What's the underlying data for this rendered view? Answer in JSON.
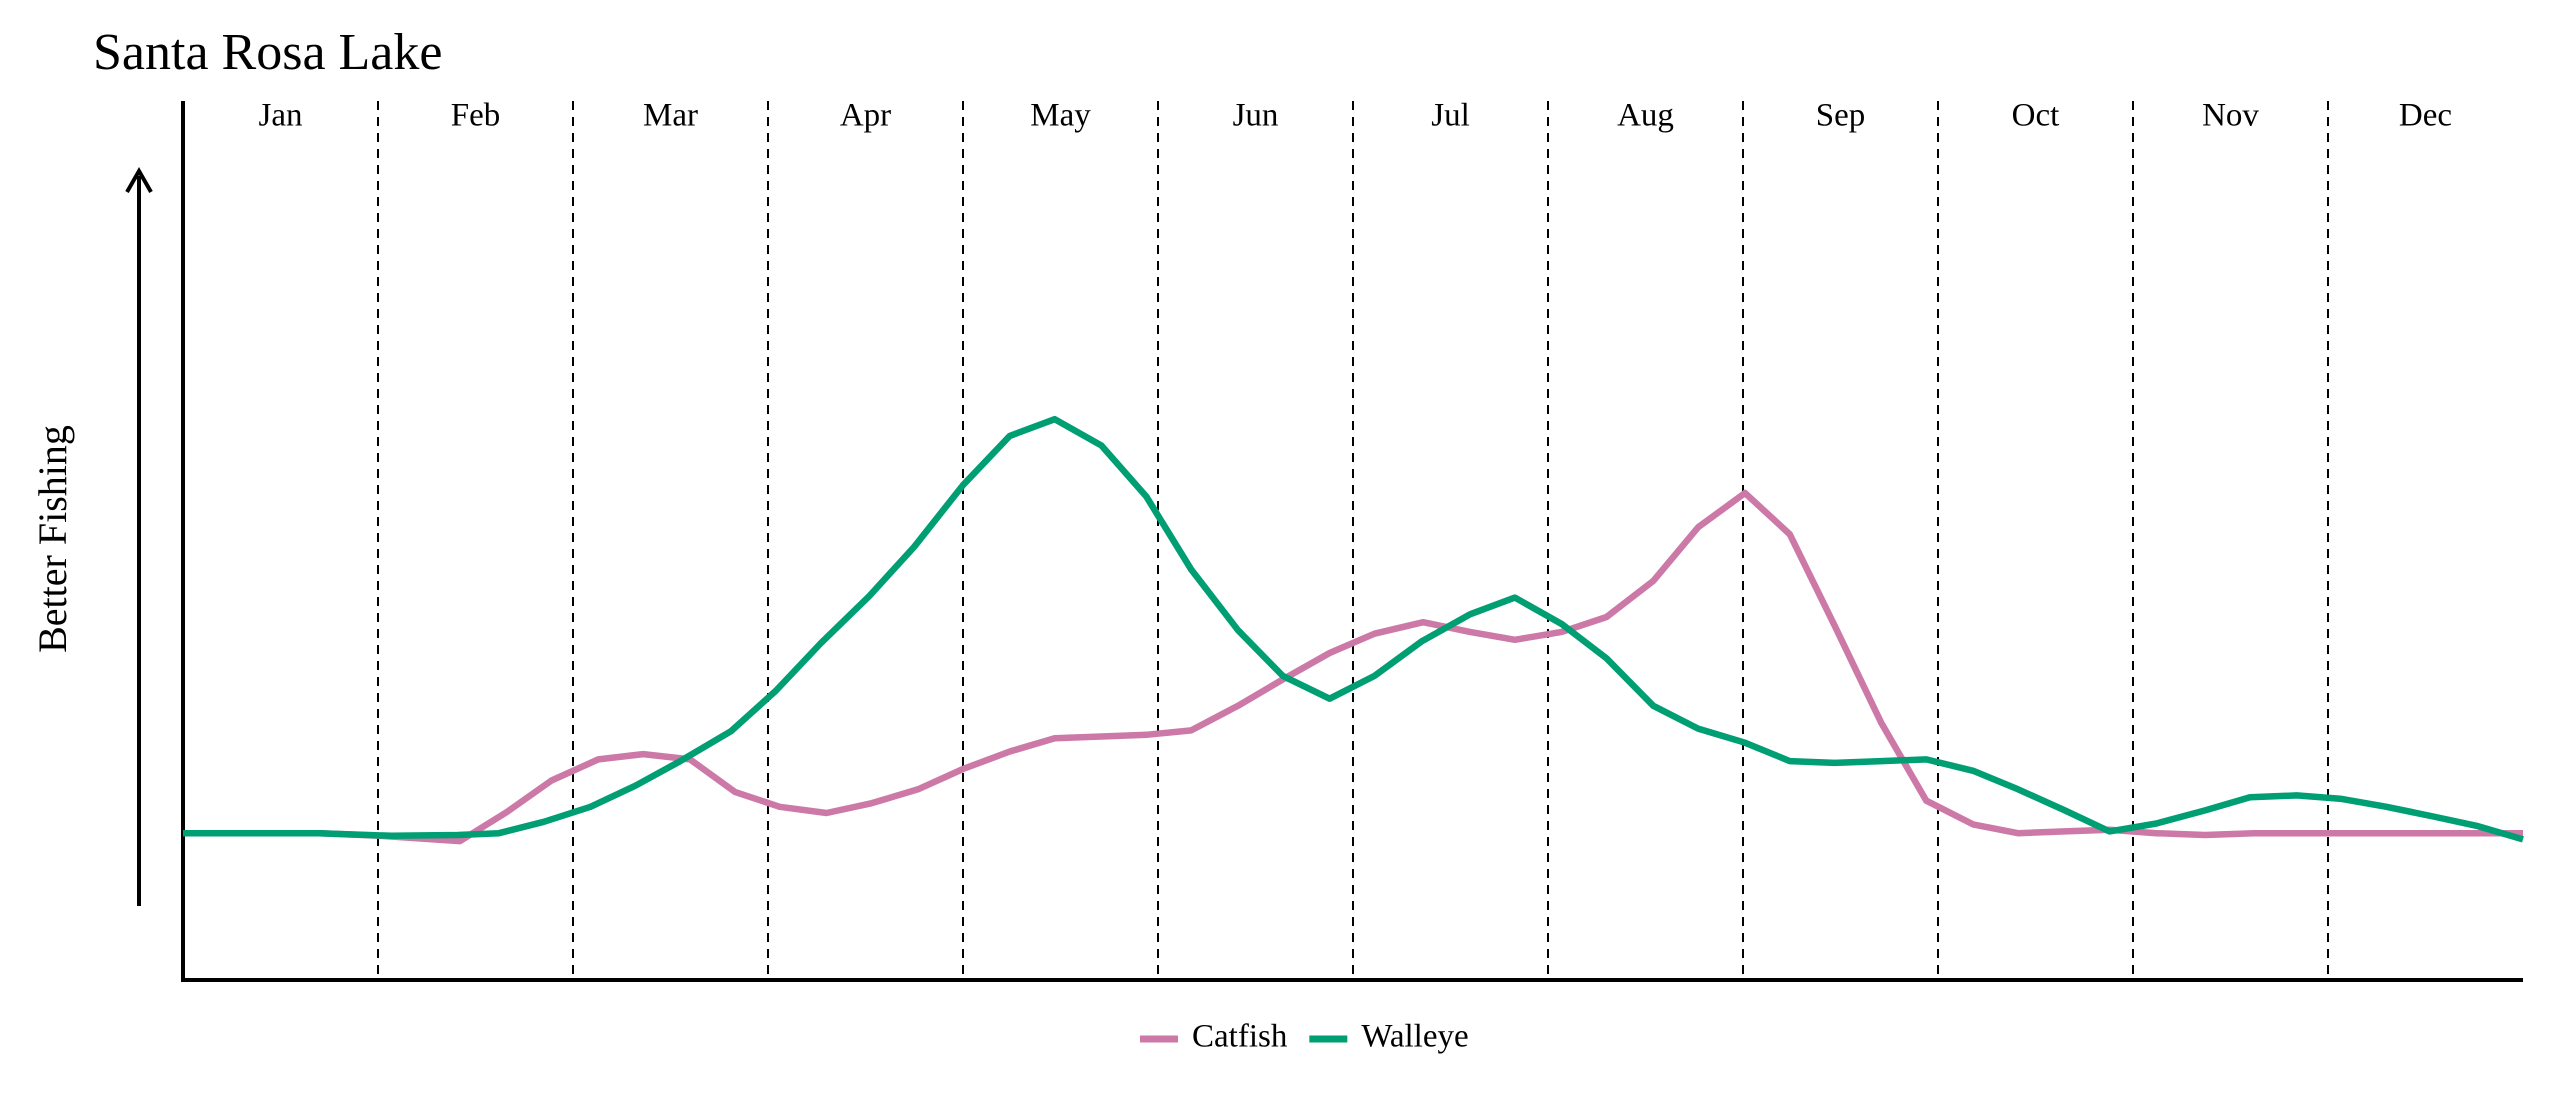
{
  "chart_data": {
    "type": "line",
    "title": "Santa Rosa Lake",
    "y_label": "Better Fishing",
    "categories": [
      "Jan",
      "Feb",
      "Mar",
      "Apr",
      "May",
      "Jun",
      "Jul",
      "Aug",
      "Sep",
      "Oct",
      "Nov",
      "Dec"
    ],
    "xlim": [
      0,
      12
    ],
    "ylim": [
      0,
      100
    ],
    "legend": "bottom",
    "series": [
      {
        "name": "Catfish",
        "color": "#cc79a7",
        "x": [
          0,
          0.7,
          1.01,
          1.42,
          1.66,
          1.89,
          2.13,
          2.36,
          2.6,
          2.83,
          3.06,
          3.3,
          3.53,
          3.77,
          4,
          4.24,
          4.47,
          4.71,
          4.94,
          5.17,
          5.41,
          5.64,
          5.88,
          6.11,
          6.36,
          6.6,
          6.83,
          7.07,
          7.3,
          7.54,
          7.77,
          8.01,
          8.24,
          8.47,
          8.71,
          8.94,
          9.18,
          9.41,
          9.65,
          9.88,
          10.12,
          10.37,
          10.62,
          12
        ],
        "values": [
          16.7,
          16.7,
          16.4,
          15.8,
          19.1,
          22.7,
          25.1,
          25.7,
          25.1,
          21.4,
          19.7,
          19.0,
          20.1,
          21.7,
          24.0,
          26.0,
          27.5,
          27.7,
          27.9,
          28.4,
          31.2,
          34.2,
          37.2,
          39.4,
          40.7,
          39.6,
          38.7,
          39.6,
          41.3,
          45.4,
          51.5,
          55.4,
          50.7,
          40.3,
          29.2,
          20.4,
          17.7,
          16.7,
          16.9,
          17.1,
          16.7,
          16.5,
          16.7,
          16.7
        ]
      },
      {
        "name": "Walleye",
        "color": "#009e73",
        "x": [
          0,
          0.7,
          1.07,
          1.41,
          1.62,
          1.85,
          2.09,
          2.32,
          2.55,
          2.81,
          3.04,
          3.27,
          3.52,
          3.75,
          4,
          4.24,
          4.47,
          4.71,
          4.94,
          5.17,
          5.41,
          5.64,
          5.88,
          6.11,
          6.35,
          6.6,
          6.83,
          7.07,
          7.3,
          7.54,
          7.77,
          8.01,
          8.24,
          8.47,
          8.71,
          8.94,
          9.18,
          9.41,
          9.65,
          9.88,
          10.12,
          10.37,
          10.6,
          10.84,
          11.07,
          11.3,
          11.54,
          11.77,
          12
        ],
        "values": [
          16.7,
          16.7,
          16.4,
          16.5,
          16.7,
          18.0,
          19.7,
          22.1,
          24.9,
          28.3,
          32.9,
          38.3,
          43.7,
          49.3,
          56.3,
          61.9,
          63.8,
          60.8,
          55.0,
          46.7,
          39.8,
          34.6,
          32.0,
          34.6,
          38.5,
          41.6,
          43.5,
          40.5,
          36.6,
          31.2,
          28.6,
          27.0,
          24.9,
          24.7,
          24.9,
          25.1,
          23.8,
          21.7,
          19.3,
          16.9,
          17.8,
          19.3,
          20.8,
          21.0,
          20.6,
          19.7,
          18.6,
          17.5,
          16.0
        ]
      }
    ]
  }
}
